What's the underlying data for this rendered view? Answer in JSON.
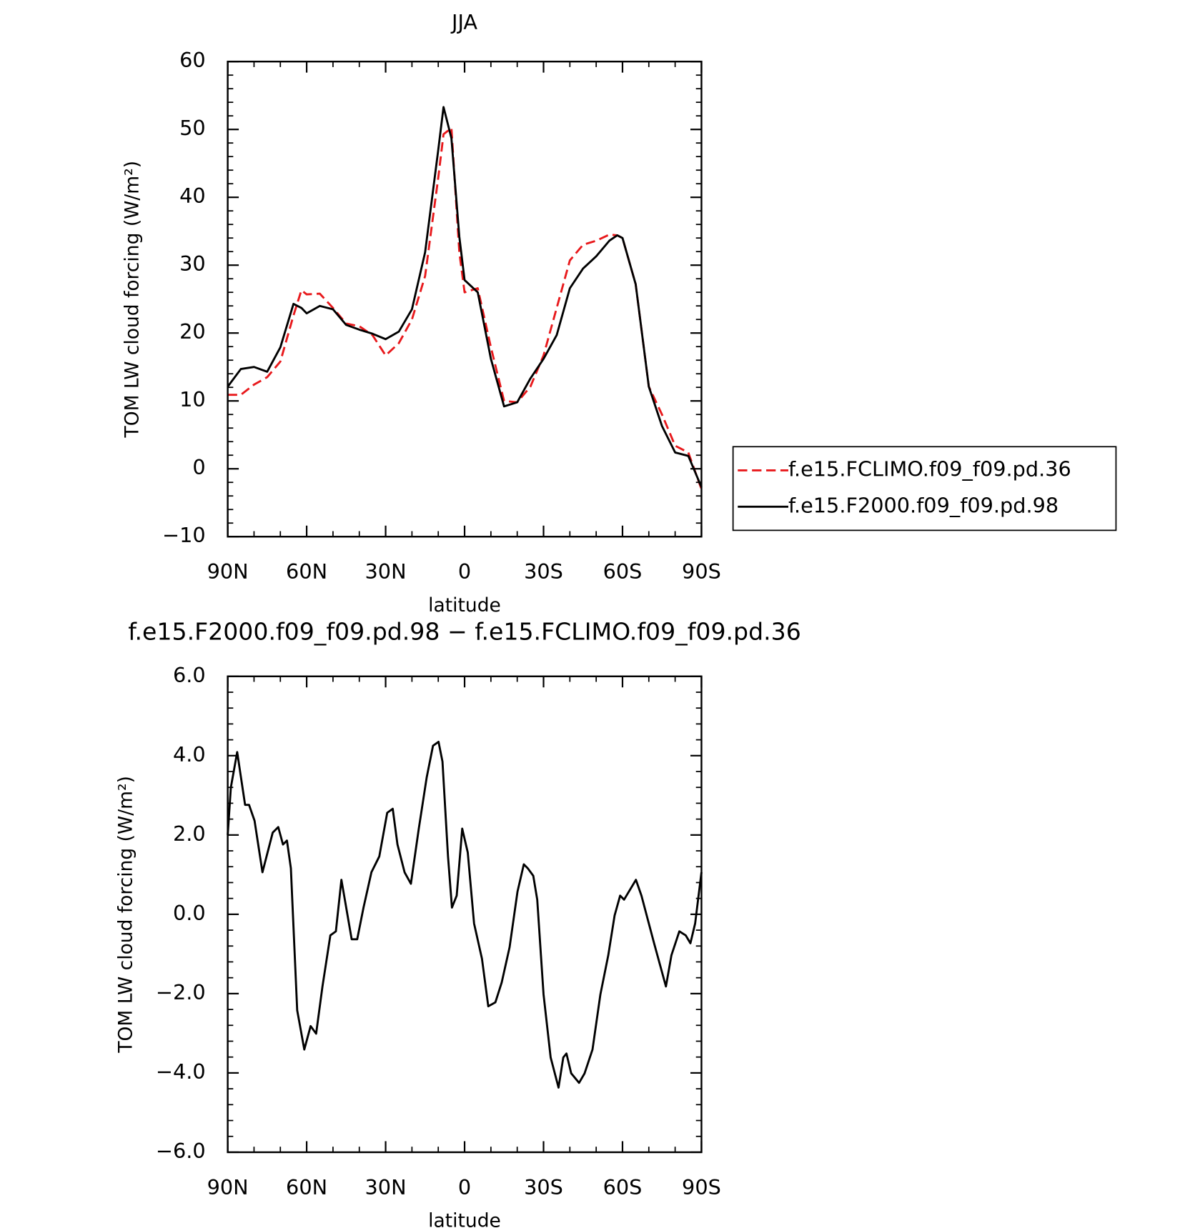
{
  "chart_data": [
    {
      "type": "line",
      "title": "JJA",
      "xlabel": "latitude",
      "ylabel": "TOM LW cloud forcing (W/m²)",
      "x": [
        90,
        85,
        80,
        75,
        70,
        65,
        62,
        60,
        55,
        50,
        45,
        40,
        35,
        30,
        25,
        20,
        15,
        10,
        8,
        5,
        2,
        0,
        -5,
        -10,
        -15,
        -20,
        -25,
        -30,
        -35,
        -40,
        -45,
        -50,
        -55,
        -58,
        -60,
        -65,
        -70,
        -75,
        -80,
        -85,
        -90
      ],
      "series": [
        {
          "name": "f.e15.FCLIMO.f09_f09.pd.36",
          "color": "#e8191c",
          "dash": true,
          "values": [
            10.9,
            10.9,
            12.4,
            13.5,
            15.8,
            22.6,
            26.3,
            25.7,
            25.8,
            23.7,
            21.4,
            21.0,
            19.7,
            16.7,
            18.5,
            22.0,
            28.4,
            42.9,
            49.3,
            50.2,
            31.9,
            26.0,
            26.6,
            17.9,
            10.0,
            9.8,
            12.1,
            16.7,
            23.7,
            30.7,
            33.0,
            33.6,
            34.5,
            34.4,
            34.0,
            27.2,
            12.1,
            8.0,
            3.4,
            2.4,
            -3.0
          ]
        },
        {
          "name": "f.e15.F2000.f09_f09.pd.98",
          "color": "#000000",
          "dash": false,
          "values": [
            12.1,
            14.7,
            15.0,
            14.3,
            17.9,
            24.3,
            23.7,
            22.9,
            24.0,
            23.5,
            21.2,
            20.5,
            19.9,
            19.1,
            20.2,
            23.5,
            31.9,
            47.0,
            53.3,
            48.7,
            34.2,
            27.8,
            26.0,
            16.2,
            9.2,
            9.8,
            13.3,
            16.2,
            19.7,
            26.6,
            29.5,
            31.3,
            33.6,
            34.4,
            34.0,
            27.2,
            12.1,
            6.3,
            2.4,
            1.9,
            -2.7
          ]
        }
      ],
      "xlim": [
        90,
        -90
      ],
      "xticks": [
        {
          "value": 90,
          "label": "90N"
        },
        {
          "value": 60,
          "label": "60N"
        },
        {
          "value": 30,
          "label": "30N"
        },
        0,
        {
          "value": -30,
          "label": "30S"
        },
        {
          "value": -60,
          "label": "60S"
        },
        {
          "value": -90,
          "label": "90S"
        }
      ],
      "xminorticks": [
        80,
        70,
        50,
        40,
        20,
        10,
        -10,
        -20,
        -40,
        -50,
        -70,
        -80
      ],
      "ylim": [
        -10,
        60
      ],
      "yticks": [
        {
          "value": -10,
          "label": "−10"
        },
        0,
        10,
        20,
        30,
        40,
        50,
        60
      ],
      "yminorticks": [
        -8,
        -6,
        -4,
        -2,
        2,
        4,
        6,
        8,
        12,
        14,
        16,
        18,
        22,
        24,
        26,
        28,
        32,
        34,
        36,
        38,
        42,
        44,
        46,
        48,
        52,
        54,
        56,
        58
      ],
      "legend": "right"
    },
    {
      "type": "line",
      "title": "f.e15.F2000.f09_f09.pd.98 − f.e15.FCLIMO.f09_f09.pd.36",
      "xlabel": "latitude",
      "ylabel": "TOM LW cloud forcing (W/m²)",
      "x": [
        90,
        88.8,
        86.4,
        83.4,
        81.9,
        79.8,
        76.8,
        72.9,
        70.8,
        69,
        67.5,
        66,
        63.6,
        60.9,
        58.5,
        56.4,
        54,
        51,
        48.9,
        46.8,
        42.9,
        40.8,
        38.4,
        35.4,
        32.4,
        29.4,
        27.3,
        25.5,
        22.8,
        20.4,
        17.4,
        14.4,
        12,
        9.9,
        8.4,
        6.3,
        4.8,
        3,
        0.9,
        -1.2,
        -3.6,
        -6.6,
        -9,
        -11.7,
        -14.1,
        -17.1,
        -20.1,
        -22.5,
        -24,
        -26.1,
        -27.6,
        -30,
        -32.7,
        -35.7,
        -37.5,
        -38.7,
        -40.5,
        -43.5,
        -45.6,
        -48.6,
        -51.6,
        -54.6,
        -57,
        -59.1,
        -60.6,
        -65.1,
        -67.2,
        -69.6,
        -72,
        -76.5,
        -78.6,
        -81.6,
        -84,
        -85.8,
        -87.6,
        -90
      ],
      "series": [
        {
          "color": "#000000",
          "dash": false,
          "values": [
            2.0,
            3.2,
            4.09,
            2.76,
            2.76,
            2.36,
            1.06,
            2.06,
            2.2,
            1.76,
            1.86,
            1.16,
            -2.42,
            -3.41,
            -2.82,
            -3.01,
            -1.82,
            -0.53,
            -0.43,
            0.87,
            -0.63,
            -0.63,
            0.17,
            1.06,
            1.46,
            2.56,
            2.66,
            1.76,
            1.06,
            0.77,
            2.16,
            3.45,
            4.25,
            4.35,
            3.85,
            1.46,
            0.17,
            0.47,
            2.16,
            1.56,
            -0.23,
            -1.12,
            -2.32,
            -2.22,
            -1.72,
            -0.83,
            0.57,
            1.26,
            1.16,
            0.97,
            0.37,
            -2.02,
            -3.61,
            -4.37,
            -3.61,
            -3.51,
            -4.01,
            -4.25,
            -4.01,
            -3.41,
            -2.02,
            -1.03,
            -0.03,
            0.47,
            0.37,
            0.87,
            0.47,
            -0.13,
            -0.73,
            -1.82,
            -1.03,
            -0.43,
            -0.53,
            -0.73,
            -0.23,
            1.06
          ]
        }
      ],
      "xlim": [
        90,
        -90
      ],
      "xticks": [
        {
          "value": 90,
          "label": "90N"
        },
        {
          "value": 60,
          "label": "60N"
        },
        {
          "value": 30,
          "label": "30N"
        },
        0,
        {
          "value": -30,
          "label": "30S"
        },
        {
          "value": -60,
          "label": "60S"
        },
        {
          "value": -90,
          "label": "90S"
        }
      ],
      "xminorticks": [
        80,
        70,
        50,
        40,
        20,
        10,
        -10,
        -20,
        -40,
        -50,
        -70,
        -80
      ],
      "ylim": [
        -6,
        6
      ],
      "yticks": [
        {
          "value": -6,
          "label": "−6.0"
        },
        {
          "value": -4,
          "label": "−4.0"
        },
        {
          "value": -2,
          "label": "−2.0"
        },
        {
          "value": 0,
          "label": "0.0"
        },
        {
          "value": 2,
          "label": "2.0"
        },
        {
          "value": 4,
          "label": "4.0"
        },
        {
          "value": 6,
          "label": "6.0"
        }
      ],
      "yminorticks": [
        -5.6,
        -5.2,
        -4.8,
        -4.4,
        -3.6,
        -3.2,
        -2.8,
        -2.4,
        -1.6,
        -1.2,
        -0.8,
        -0.4,
        0.4,
        0.8,
        1.2,
        1.6,
        2.4,
        2.8,
        3.2,
        3.6,
        4.4,
        4.8,
        5.2,
        5.6
      ]
    }
  ]
}
